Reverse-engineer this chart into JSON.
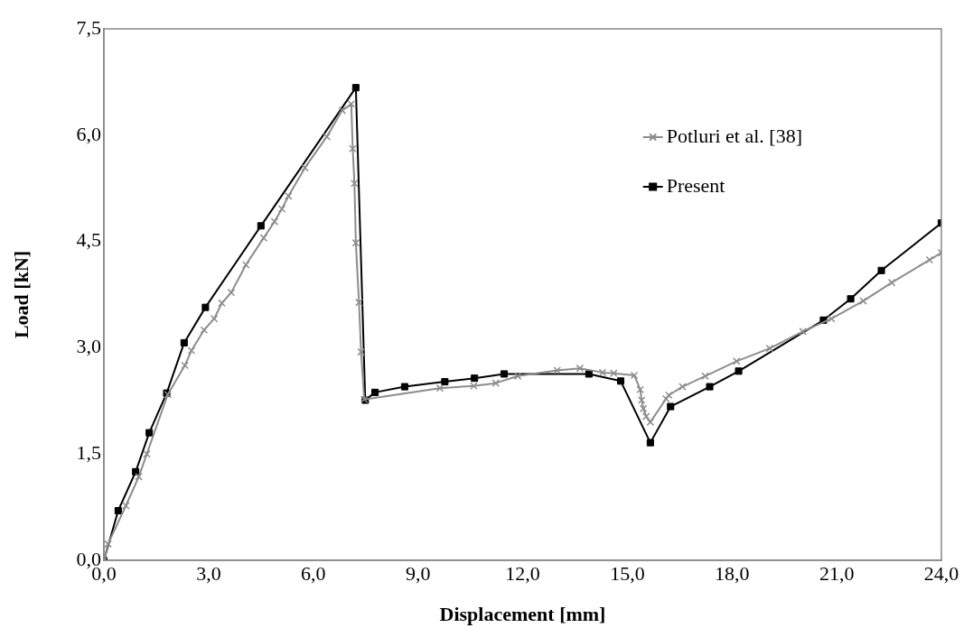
{
  "chart_data": {
    "type": "line",
    "xlabel": "Displacement [mm]",
    "ylabel": "Load [kN]",
    "xlim": [
      0,
      24
    ],
    "ylim": [
      0,
      7.5
    ],
    "xticks": [
      {
        "value": 0,
        "label": "0,0"
      },
      {
        "value": 3,
        "label": "3,0"
      },
      {
        "value": 6,
        "label": "6,0"
      },
      {
        "value": 9,
        "label": "9,0"
      },
      {
        "value": 12,
        "label": "12,0"
      },
      {
        "value": 15,
        "label": "15,0"
      },
      {
        "value": 18,
        "label": "18,0"
      },
      {
        "value": 21,
        "label": "21,0"
      },
      {
        "value": 24,
        "label": "24,0"
      }
    ],
    "yticks": [
      {
        "value": 0,
        "label": "0,0"
      },
      {
        "value": 1.5,
        "label": "1,5"
      },
      {
        "value": 3,
        "label": "3,0"
      },
      {
        "value": 4.5,
        "label": "4,5"
      },
      {
        "value": 6,
        "label": "6,0"
      },
      {
        "value": 7.5,
        "label": "7,5"
      }
    ],
    "grid": false,
    "legend": "top right",
    "line_style": "solid",
    "series": [
      {
        "name": "Potluri et al. [38]",
        "color": "#8c8c8c",
        "marker": "cross",
        "x": [
          0,
          0.12,
          0.63,
          1.0,
          1.23,
          1.83,
          2.32,
          2.51,
          2.87,
          3.16,
          3.38,
          3.65,
          4.07,
          4.58,
          4.89,
          5.1,
          5.29,
          5.76,
          6.39,
          6.83,
          7.09,
          7.13,
          7.18,
          7.22,
          7.31,
          7.37,
          7.46,
          9.63,
          10.6,
          11.23,
          11.86,
          12.99,
          13.64,
          14.29,
          14.61,
          15.2,
          15.37,
          15.41,
          15.46,
          15.54,
          15.66,
          16.11,
          16.19,
          16.58,
          17.23,
          18.13,
          19.08,
          20.03,
          20.85,
          21.76,
          22.58,
          23.66,
          24
        ],
        "values": [
          0,
          0.23,
          0.77,
          1.18,
          1.5,
          2.34,
          2.75,
          2.96,
          3.25,
          3.41,
          3.63,
          3.78,
          4.17,
          4.55,
          4.78,
          4.96,
          5.14,
          5.54,
          5.98,
          6.35,
          6.44,
          5.81,
          5.32,
          4.48,
          3.64,
          2.94,
          2.27,
          2.43,
          2.46,
          2.5,
          2.6,
          2.68,
          2.71,
          2.65,
          2.64,
          2.61,
          2.41,
          2.26,
          2.14,
          2.03,
          1.95,
          2.28,
          2.33,
          2.45,
          2.6,
          2.81,
          2.99,
          3.23,
          3.41,
          3.66,
          3.92,
          4.24,
          4.34
        ]
      },
      {
        "name": "Present",
        "color": "#000000",
        "marker": "square",
        "x": [
          0,
          0.41,
          0.91,
          1.3,
          1.8,
          2.3,
          2.91,
          4.5,
          7.22,
          7.49,
          7.77,
          8.62,
          9.77,
          10.62,
          11.47,
          13.9,
          14.81,
          15.66,
          16.24,
          17.36,
          18.19,
          20.62,
          21.4,
          22.28,
          24
        ],
        "values": [
          0,
          0.7,
          1.25,
          1.8,
          2.36,
          3.07,
          3.57,
          4.72,
          6.67,
          2.26,
          2.37,
          2.45,
          2.52,
          2.57,
          2.63,
          2.63,
          2.53,
          1.66,
          2.17,
          2.45,
          2.67,
          3.39,
          3.69,
          4.09,
          4.76
        ]
      }
    ]
  }
}
